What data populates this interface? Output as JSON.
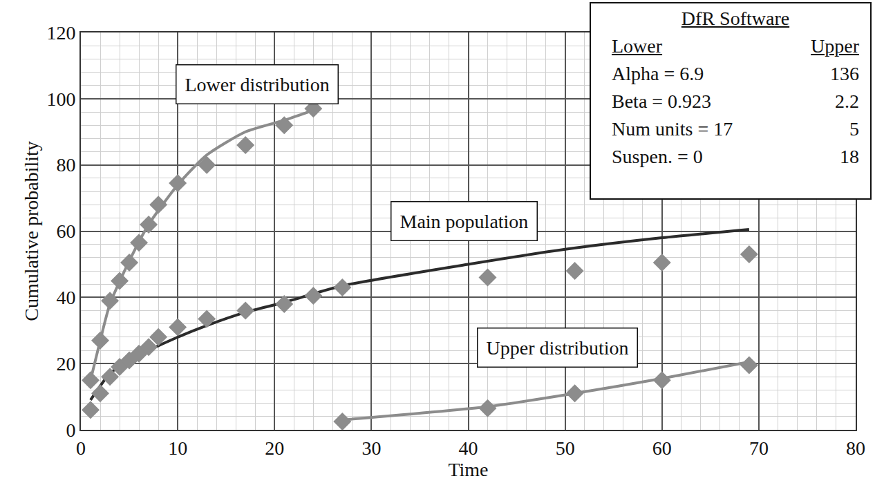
{
  "chart_data": {
    "type": "scatter",
    "x_label": "Time",
    "y_label": "Cumulative probability",
    "xlim": [
      0,
      80
    ],
    "xticks": [
      0,
      10,
      20,
      30,
      40,
      50,
      60,
      70,
      80
    ],
    "ylim": [
      0,
      120
    ],
    "yticks": [
      0,
      20,
      40,
      60,
      80,
      100,
      120
    ],
    "grid": true,
    "series": [
      {
        "type": "line",
        "color": "#8c8c8c",
        "x": [
          1,
          2,
          3,
          5,
          7,
          10,
          13,
          17,
          21,
          24
        ],
        "values": [
          15,
          27,
          38,
          51,
          62,
          74,
          83,
          90,
          93.5,
          96.5
        ]
      },
      {
        "type": "scatter",
        "color": "#8c8c8c",
        "marker": "diamond",
        "x": [
          1,
          2,
          3,
          4,
          5,
          6,
          7,
          8,
          10,
          13,
          17,
          21,
          24
        ],
        "values": [
          15,
          27,
          39,
          45,
          50.5,
          56.5,
          62,
          68,
          74.5,
          80,
          86,
          92,
          97
        ]
      },
      {
        "type": "line",
        "color": "#2b2b2b",
        "x": [
          1,
          3,
          5,
          7,
          10,
          13,
          17,
          21,
          27,
          40,
          50,
          60,
          69
        ],
        "values": [
          9,
          17,
          21,
          24,
          28,
          31.5,
          35.5,
          38.5,
          43.5,
          50,
          54.5,
          58,
          60.5
        ]
      },
      {
        "type": "scatter",
        "color": "#8c8c8c",
        "marker": "diamond",
        "x": [
          1,
          2,
          3,
          4,
          5,
          6,
          7,
          8,
          10,
          13,
          17,
          21,
          24,
          27,
          42,
          51,
          60,
          69
        ],
        "values": [
          6,
          11,
          16,
          19,
          21,
          23,
          25,
          28,
          31,
          33.5,
          36,
          38,
          40.5,
          43,
          46,
          48,
          50.5,
          53
        ]
      },
      {
        "type": "line",
        "color": "#8c8c8c",
        "x": [
          27,
          42,
          51,
          60,
          69
        ],
        "values": [
          3,
          7,
          11,
          15.5,
          20.5
        ]
      },
      {
        "type": "scatter",
        "color": "#8c8c8c",
        "marker": "diamond",
        "x": [
          27,
          42,
          51,
          60,
          69
        ],
        "values": [
          2.5,
          6.5,
          11,
          15,
          19.5
        ]
      }
    ],
    "annotations": [
      {
        "text": "Lower distribution",
        "x": 18.2,
        "y": 104.3
      },
      {
        "text": "Main population",
        "x": 39.6,
        "y": 63.0
      },
      {
        "text": "Upper distribution",
        "x": 49.2,
        "y": 24.8
      }
    ],
    "info_box": {
      "title": "DfR Software",
      "header": [
        "Lower",
        "Upper"
      ],
      "rows": [
        [
          "Alpha = 6.9",
          "136"
        ],
        [
          "Beta = 0.923",
          "2.2"
        ],
        [
          "Num units = 17",
          "5"
        ],
        [
          "Suspen. = 0",
          "18"
        ]
      ]
    }
  }
}
